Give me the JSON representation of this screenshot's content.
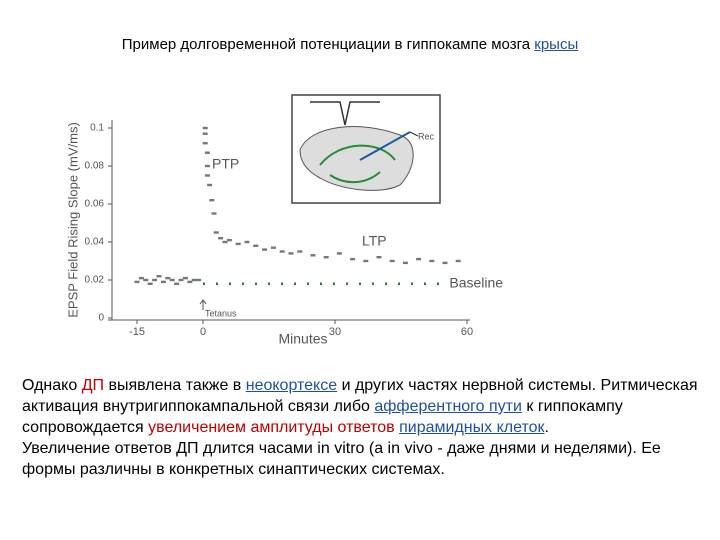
{
  "title": [
    {
      "text": "Пример долговременной потенциации в гиппокампе мозга ",
      "style": "plain"
    },
    {
      "text": "крысы",
      "style": "link"
    }
  ],
  "body": [
    [
      {
        "text": "Однако ",
        "style": "plain"
      },
      {
        "text": "ДП",
        "style": "red"
      },
      {
        "text": " выявлена также в ",
        "style": "plain"
      },
      {
        "text": "неокортексе",
        "style": "link"
      },
      {
        "text": " и других частях нервной системы. Ритмическая активация внутригиппокампальной связи либо ",
        "style": "plain"
      },
      {
        "text": "афферентного пути",
        "style": "link"
      },
      {
        "text": " к гиппокампу сопровождается ",
        "style": "plain"
      },
      {
        "text": "увеличением амплитуды ответов",
        "style": "red"
      },
      {
        "text": " ",
        "style": "plain"
      },
      {
        "text": "пирамидных клеток",
        "style": "link"
      },
      {
        "text": ".",
        "style": "plain"
      }
    ],
    [
      {
        "text": "Увеличение ответов ДП длится часами in vitro (а in vivo - даже днями и неделями). Ее формы различны в конкретных синаптических системах.",
        "style": "plain"
      }
    ]
  ],
  "chart_data": {
    "type": "scatter",
    "xlabel": "Minutes",
    "ylabel": "EPSP Field Rising Slope (mV/ms)",
    "xlim": [
      -20,
      60
    ],
    "ylim": [
      0,
      0.1
    ],
    "xticks": [
      -15,
      0,
      30,
      60
    ],
    "yticks": [
      0,
      0.02,
      0.04,
      0.06,
      0.08,
      0.1
    ],
    "color": "#777777",
    "x": [
      -15,
      -14,
      -13,
      -12,
      -11,
      -10,
      -9,
      -8,
      -7,
      -6,
      -5,
      -4,
      -3,
      -2,
      -1,
      0.5,
      0.5,
      0.5,
      1,
      1,
      1,
      1.5,
      2,
      2.5,
      3,
      4,
      5,
      6,
      8,
      10,
      12,
      14,
      16,
      18,
      20,
      22,
      25,
      28,
      31,
      34,
      37,
      40,
      43,
      46,
      49,
      52,
      55,
      58
    ],
    "values": [
      0.019,
      0.021,
      0.02,
      0.018,
      0.02,
      0.022,
      0.019,
      0.021,
      0.02,
      0.018,
      0.02,
      0.021,
      0.019,
      0.02,
      0.02,
      0.1,
      0.097,
      0.092,
      0.087,
      0.08,
      0.075,
      0.07,
      0.062,
      0.055,
      0.045,
      0.042,
      0.04,
      0.041,
      0.039,
      0.04,
      0.038,
      0.036,
      0.037,
      0.035,
      0.034,
      0.035,
      0.033,
      0.032,
      0.034,
      0.031,
      0.03,
      0.032,
      0.03,
      0.029,
      0.031,
      0.03,
      0.029,
      0.03
    ],
    "baseline_level": 0.018,
    "annotations": {
      "ptp": "PTP",
      "ltp": "LTP",
      "baseline": "Baseline",
      "tetanus": "Tetanus",
      "rec": "Rec"
    }
  }
}
